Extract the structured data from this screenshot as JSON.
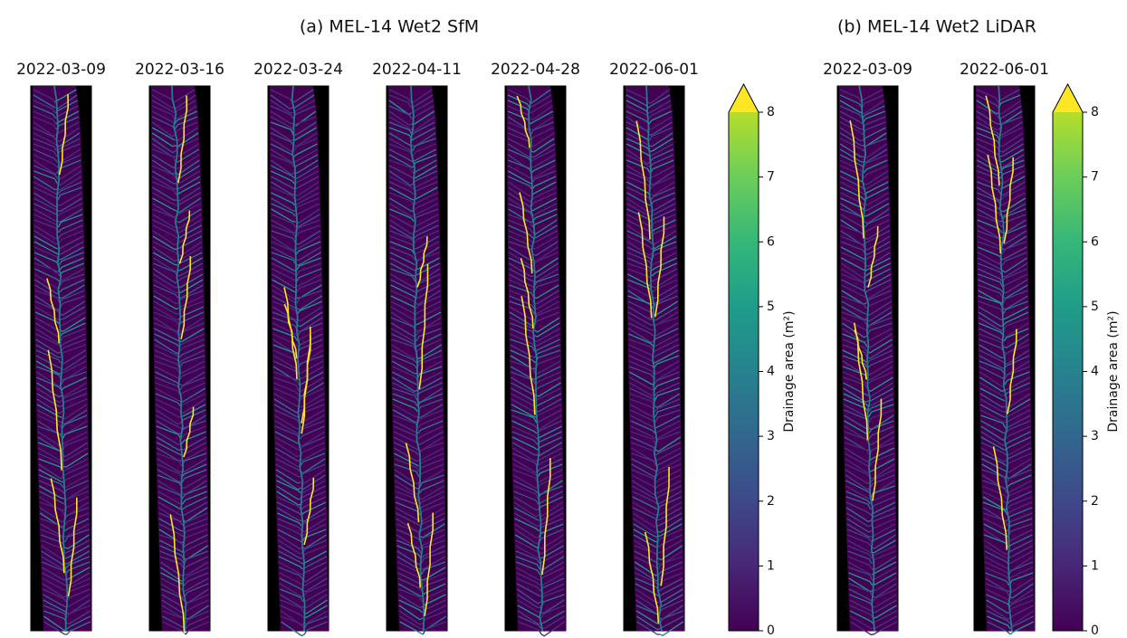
{
  "panels": [
    {
      "title": "(a) MEL-14 Wet2 SfM",
      "images": [
        "2022-03-09",
        "2022-03-16",
        "2022-03-24",
        "2022-04-11",
        "2022-04-28",
        "2022-06-01"
      ],
      "colorbar": {
        "label": "Drainage area (m²)",
        "lim": [
          0,
          8
        ],
        "ticks": [
          0,
          1,
          2,
          3,
          4,
          5,
          6,
          7,
          8
        ]
      }
    },
    {
      "title": "(b) MEL-14 Wet2 LiDAR",
      "images": [
        "2022-03-09",
        "2022-06-01"
      ],
      "colorbar": {
        "label": "Drainage area (m²)",
        "lim": [
          0,
          8
        ],
        "ticks": [
          0,
          1,
          2,
          3,
          4,
          5,
          6,
          7,
          8
        ]
      }
    }
  ]
}
